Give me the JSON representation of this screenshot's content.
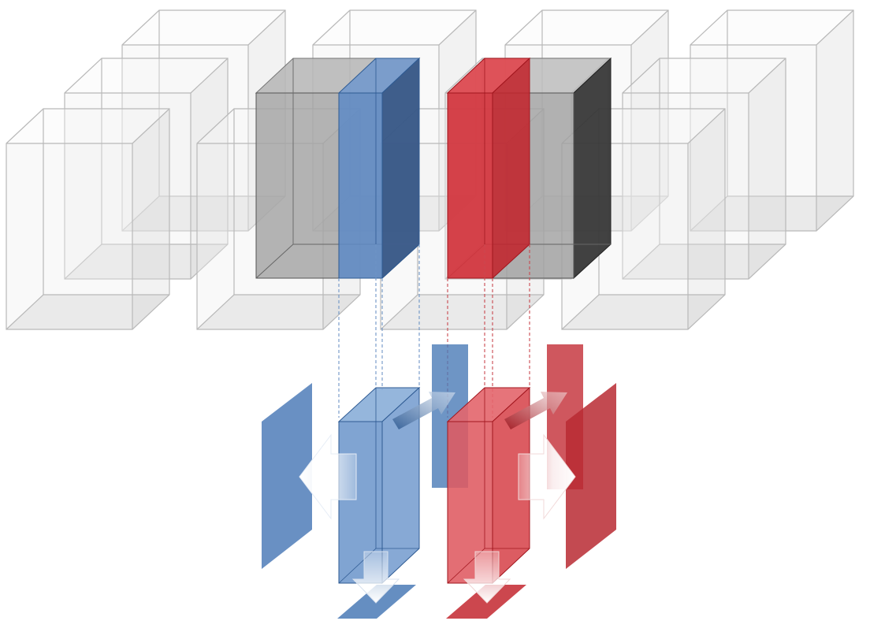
{
  "diagram": {
    "colors": {
      "background": "#ffffff",
      "ghost_edge": "#b9b9b9",
      "ghost_face": "#eeeeee",
      "active_cell_front": "#a6a6a6",
      "active_cell_side": "#3f3f3f",
      "blue_front": "#5f8fc8",
      "blue_side": "#3a6099",
      "red_front": "#d8323b",
      "red_side": "#a81c25",
      "arrow_white": "#ffffff"
    },
    "icons": [
      "left-arrow-icon",
      "right-arrow-icon",
      "down-arrow-icon",
      "diagonal-arrow-icon"
    ]
  }
}
